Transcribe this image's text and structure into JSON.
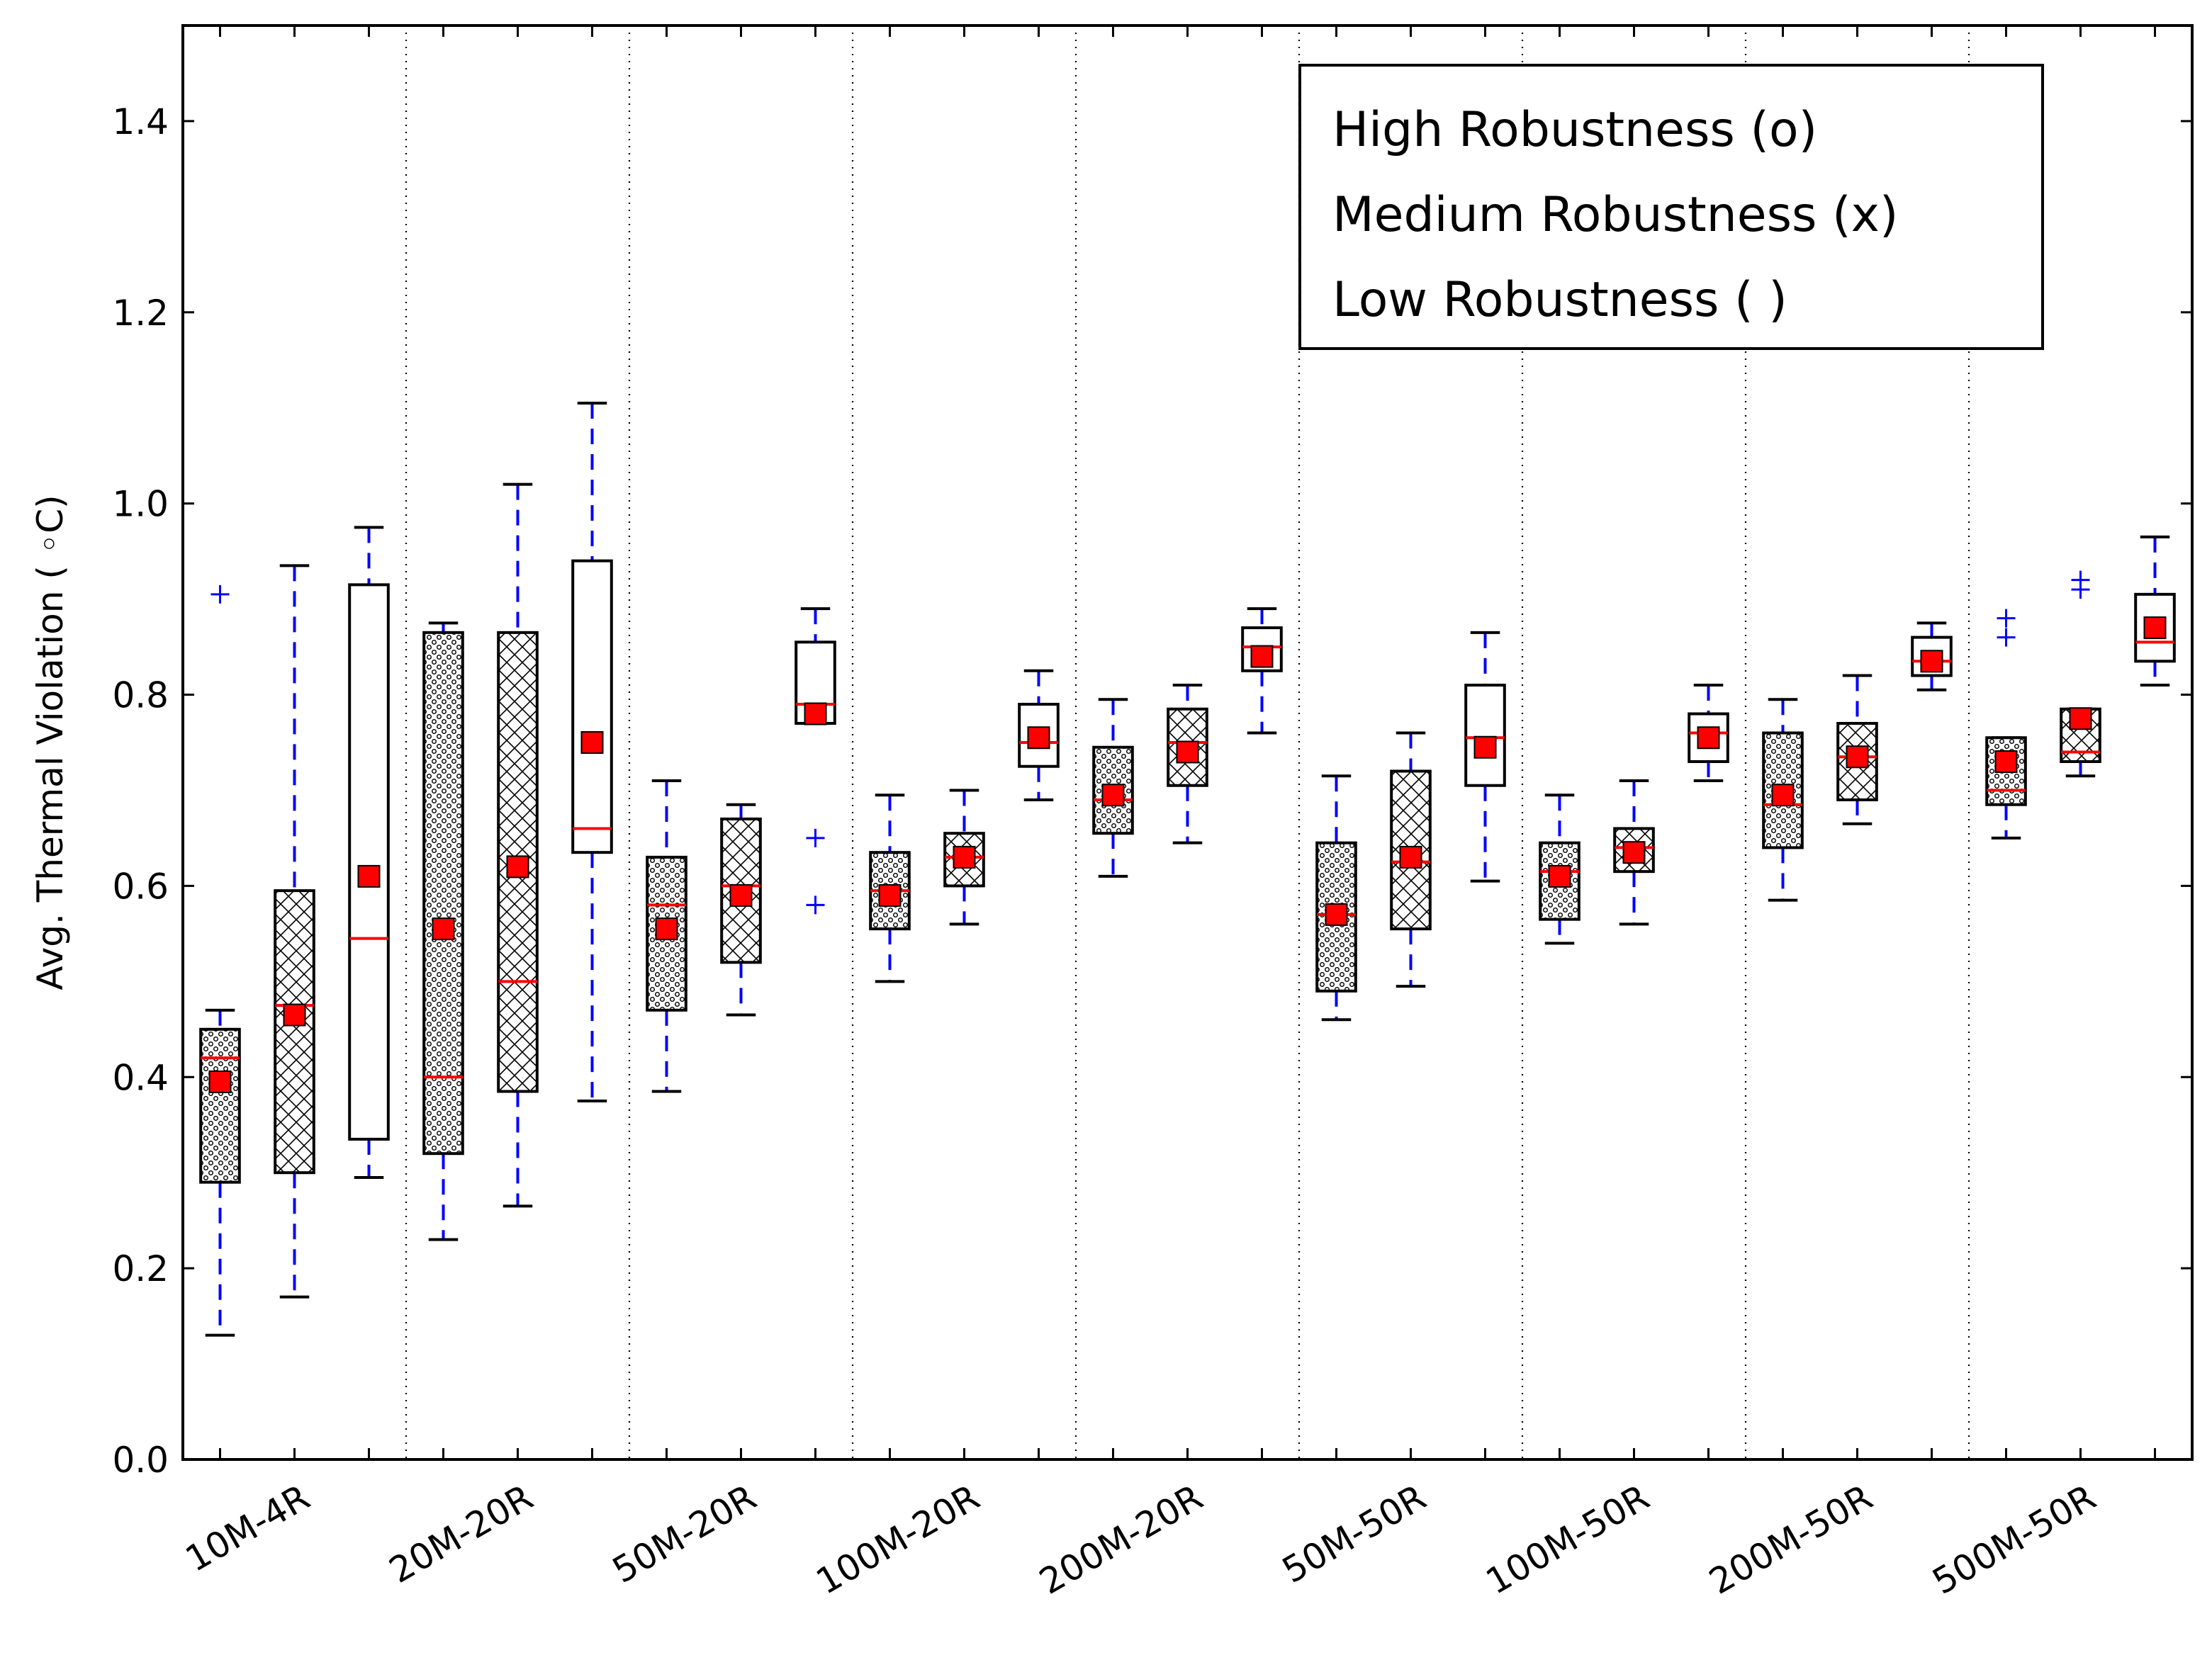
{
  "chart_data": {
    "type": "box",
    "ylabel": "Avg. Thermal Violation ( ◦C)",
    "ylim": [
      0.0,
      1.5
    ],
    "yticks": [
      "0.0",
      "0.2",
      "0.4",
      "0.6",
      "0.8",
      "1.0",
      "1.2",
      "1.4"
    ],
    "x_tick_labels": [
      "10M-4R",
      "20M-20R",
      "50M-20R",
      "100M-20R",
      "200M-20R",
      "50M-50R",
      "100M-50R",
      "200M-50R",
      "500M-50R"
    ],
    "legend": [
      "High Robustness (o)",
      "Medium Robustness (x)",
      "Low Robustness ( )"
    ],
    "legend_position": "top-right",
    "grid": "vertical dotted separators between groups",
    "colors": {
      "box_edge": "#000000",
      "whisker": "#0000ff",
      "median": "#ff0000",
      "mean_marker": "#ff0000",
      "outlier": "#0000ff"
    },
    "boxes": [
      {
        "group": "10M-4R",
        "robustness": "High",
        "whislo": 0.13,
        "q1": 0.29,
        "med": 0.42,
        "q3": 0.45,
        "whishi": 0.47,
        "mean": 0.395,
        "fliers": [
          0.905
        ]
      },
      {
        "group": "10M-4R",
        "robustness": "Medium",
        "whislo": 0.17,
        "q1": 0.3,
        "med": 0.475,
        "q3": 0.595,
        "whishi": 0.935,
        "mean": 0.465,
        "fliers": []
      },
      {
        "group": "10M-4R",
        "robustness": "Low",
        "whislo": 0.295,
        "q1": 0.335,
        "med": 0.545,
        "q3": 0.915,
        "whishi": 0.975,
        "mean": 0.61,
        "fliers": []
      },
      {
        "group": "20M-20R",
        "robustness": "High",
        "whislo": 0.23,
        "q1": 0.32,
        "med": 0.4,
        "q3": 0.865,
        "whishi": 0.875,
        "mean": 0.555,
        "fliers": []
      },
      {
        "group": "20M-20R",
        "robustness": "Medium",
        "whislo": 0.265,
        "q1": 0.385,
        "med": 0.5,
        "q3": 0.865,
        "whishi": 1.02,
        "mean": 0.62,
        "fliers": []
      },
      {
        "group": "20M-20R",
        "robustness": "Low",
        "whislo": 0.375,
        "q1": 0.635,
        "med": 0.66,
        "q3": 0.94,
        "whishi": 1.105,
        "mean": 0.75,
        "fliers": []
      },
      {
        "group": "50M-20R",
        "robustness": "High",
        "whislo": 0.385,
        "q1": 0.47,
        "med": 0.58,
        "q3": 0.63,
        "whishi": 0.71,
        "mean": 0.555,
        "fliers": []
      },
      {
        "group": "50M-20R",
        "robustness": "Medium",
        "whislo": 0.465,
        "q1": 0.52,
        "med": 0.6,
        "q3": 0.67,
        "whishi": 0.685,
        "mean": 0.59,
        "fliers": []
      },
      {
        "group": "50M-20R",
        "robustness": "Low",
        "whislo": 0.77,
        "q1": 0.77,
        "med": 0.79,
        "q3": 0.855,
        "whishi": 0.89,
        "mean": 0.78,
        "fliers": [
          0.58,
          0.65
        ]
      },
      {
        "group": "100M-20R",
        "robustness": "High",
        "whislo": 0.5,
        "q1": 0.555,
        "med": 0.595,
        "q3": 0.635,
        "whishi": 0.695,
        "mean": 0.59,
        "fliers": []
      },
      {
        "group": "100M-20R",
        "robustness": "Medium",
        "whislo": 0.56,
        "q1": 0.6,
        "med": 0.63,
        "q3": 0.655,
        "whishi": 0.7,
        "mean": 0.63,
        "fliers": []
      },
      {
        "group": "100M-20R",
        "robustness": "Low",
        "whislo": 0.69,
        "q1": 0.725,
        "med": 0.75,
        "q3": 0.79,
        "whishi": 0.825,
        "mean": 0.755,
        "fliers": []
      },
      {
        "group": "200M-20R",
        "robustness": "High",
        "whislo": 0.61,
        "q1": 0.655,
        "med": 0.69,
        "q3": 0.745,
        "whishi": 0.795,
        "mean": 0.695,
        "fliers": []
      },
      {
        "group": "200M-20R",
        "robustness": "Medium",
        "whislo": 0.645,
        "q1": 0.705,
        "med": 0.75,
        "q3": 0.785,
        "whishi": 0.81,
        "mean": 0.74,
        "fliers": []
      },
      {
        "group": "200M-20R",
        "robustness": "Low",
        "whislo": 0.76,
        "q1": 0.825,
        "med": 0.85,
        "q3": 0.87,
        "whishi": 0.89,
        "mean": 0.84,
        "fliers": []
      },
      {
        "group": "50M-50R",
        "robustness": "High",
        "whislo": 0.46,
        "q1": 0.49,
        "med": 0.57,
        "q3": 0.645,
        "whishi": 0.715,
        "mean": 0.57,
        "fliers": []
      },
      {
        "group": "50M-50R",
        "robustness": "Medium",
        "whislo": 0.495,
        "q1": 0.555,
        "med": 0.625,
        "q3": 0.72,
        "whishi": 0.76,
        "mean": 0.63,
        "fliers": []
      },
      {
        "group": "50M-50R",
        "robustness": "Low",
        "whislo": 0.605,
        "q1": 0.705,
        "med": 0.755,
        "q3": 0.81,
        "whishi": 0.865,
        "mean": 0.745,
        "fliers": []
      },
      {
        "group": "100M-50R",
        "robustness": "High",
        "whislo": 0.54,
        "q1": 0.565,
        "med": 0.615,
        "q3": 0.645,
        "whishi": 0.695,
        "mean": 0.61,
        "fliers": []
      },
      {
        "group": "100M-50R",
        "robustness": "Medium",
        "whislo": 0.56,
        "q1": 0.615,
        "med": 0.64,
        "q3": 0.66,
        "whishi": 0.71,
        "mean": 0.635,
        "fliers": []
      },
      {
        "group": "100M-50R",
        "robustness": "Low",
        "whislo": 0.71,
        "q1": 0.73,
        "med": 0.76,
        "q3": 0.78,
        "whishi": 0.81,
        "mean": 0.755,
        "fliers": []
      },
      {
        "group": "200M-50R",
        "robustness": "High",
        "whislo": 0.585,
        "q1": 0.64,
        "med": 0.685,
        "q3": 0.76,
        "whishi": 0.795,
        "mean": 0.695,
        "fliers": []
      },
      {
        "group": "200M-50R",
        "robustness": "Medium",
        "whislo": 0.665,
        "q1": 0.69,
        "med": 0.735,
        "q3": 0.77,
        "whishi": 0.82,
        "mean": 0.735,
        "fliers": []
      },
      {
        "group": "200M-50R",
        "robustness": "Low",
        "whislo": 0.805,
        "q1": 0.82,
        "med": 0.835,
        "q3": 0.86,
        "whishi": 0.875,
        "mean": 0.835,
        "fliers": []
      },
      {
        "group": "500M-50R",
        "robustness": "High",
        "whislo": 0.65,
        "q1": 0.685,
        "med": 0.7,
        "q3": 0.755,
        "whishi": 0.755,
        "mean": 0.73,
        "fliers": [
          0.86,
          0.88
        ]
      },
      {
        "group": "500M-50R",
        "robustness": "Medium",
        "whislo": 0.715,
        "q1": 0.73,
        "med": 0.74,
        "q3": 0.785,
        "whishi": 0.785,
        "mean": 0.775,
        "fliers": [
          0.91,
          0.92
        ]
      },
      {
        "group": "500M-50R",
        "robustness": "Low",
        "whislo": 0.81,
        "q1": 0.835,
        "med": 0.855,
        "q3": 0.905,
        "whishi": 0.965,
        "mean": 0.87,
        "fliers": []
      }
    ]
  }
}
